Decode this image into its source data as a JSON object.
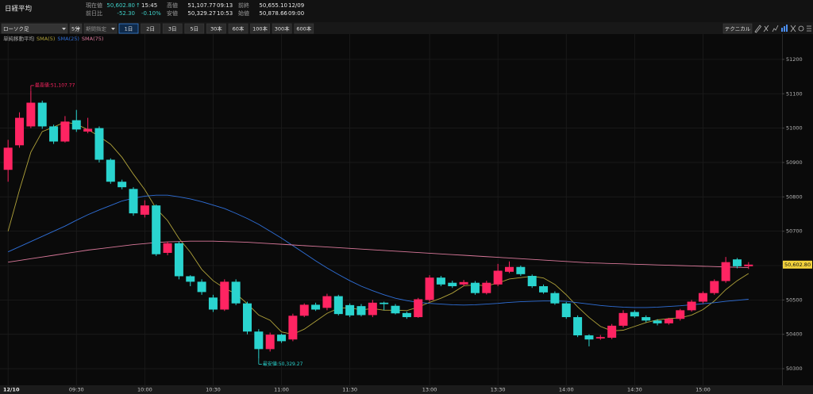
{
  "header": {
    "title": "日経平均",
    "quotes": [
      {
        "label": "現在値",
        "value": "50,602.80",
        "arrow": "↑",
        "note": "15:45"
      },
      {
        "label": "前日比",
        "value": "-52.30",
        "note": "-0.10%"
      },
      {
        "label": "高値",
        "value": "51,107.77",
        "note": "09:13"
      },
      {
        "label": "安値",
        "value": "50,329.27",
        "note": "10:53"
      },
      {
        "label": "前終",
        "value": "50,655.10",
        "note": "12/09"
      },
      {
        "label": "始値",
        "value": "50,878.66",
        "note": "09:00"
      }
    ]
  },
  "toolbar": {
    "dropdowns": [
      "ローソク足",
      "5分",
      "期間指定"
    ],
    "ranges": [
      "1日",
      "2日",
      "3日",
      "5日",
      "30本",
      "60本",
      "100本",
      "300本",
      "600本"
    ],
    "technical": "テクニカル"
  },
  "chart_data": {
    "type": "candlestick",
    "legend_title": "単純移動平均",
    "categories": [
      "12/10",
      null,
      null,
      null,
      null,
      null,
      "09:30",
      null,
      null,
      null,
      null,
      null,
      "10:00",
      null,
      null,
      null,
      null,
      null,
      "10:30",
      null,
      null,
      null,
      null,
      null,
      "11:00",
      null,
      null,
      null,
      null,
      null,
      "11:30",
      null,
      null,
      null,
      null,
      null,
      null,
      "13:00",
      null,
      null,
      null,
      null,
      null,
      "13:30",
      null,
      null,
      null,
      null,
      null,
      "14:00",
      null,
      null,
      null,
      null,
      null,
      "14:30",
      null,
      null,
      null,
      null,
      null,
      "15:00",
      null,
      null,
      null,
      null
    ],
    "open": [
      50878.66,
      50950,
      51005,
      51074,
      51005,
      50961,
      51023,
      50990,
      51000,
      50908,
      50844,
      50823,
      50748,
      50775,
      50637,
      50665,
      50569,
      50553,
      50507,
      50472,
      50553,
      50490,
      50408,
      50357,
      50399,
      50385,
      50454,
      50486,
      50477,
      50511,
      50485,
      50482,
      50456,
      50492,
      50483,
      50462,
      50450,
      50500,
      50565,
      50550,
      50545,
      50550,
      50520,
      50545,
      50582,
      50596,
      50570,
      50540,
      50520,
      50490,
      50450,
      50397,
      50388,
      50390,
      50425,
      50465,
      50450,
      50440,
      50432,
      50445,
      50470,
      50495,
      50520,
      50555,
      50618,
      50598
    ],
    "high": [
      50966,
      51046,
      51107.77,
      51080,
      51010,
      51035,
      51053,
      51030,
      51005,
      50912,
      50850,
      50828,
      50790,
      50778,
      50670,
      50670,
      50572,
      50560,
      50515,
      50560,
      50560,
      50495,
      50415,
      50405,
      50402,
      50460,
      50490,
      50492,
      50518,
      50515,
      50490,
      50488,
      50500,
      50495,
      50488,
      50466,
      50506,
      50572,
      50570,
      50556,
      50558,
      50555,
      50556,
      50605,
      50612,
      50600,
      50574,
      50545,
      50525,
      50494,
      50455,
      50400,
      50398,
      50430,
      50470,
      50470,
      50455,
      50444,
      50448,
      50474,
      50500,
      50525,
      50560,
      50625,
      50622,
      50610
    ],
    "low": [
      50844,
      50943,
      51000,
      50998,
      50954,
      50958,
      50989,
      50985,
      50900,
      50838,
      50822,
      50745,
      50740,
      50628,
      50630,
      50560,
      50540,
      50515,
      50465,
      50468,
      50485,
      50400,
      50329.27,
      50350,
      50375,
      50380,
      50450,
      50468,
      50470,
      50455,
      50450,
      50452,
      50450,
      50470,
      50458,
      50445,
      50448,
      50495,
      50540,
      50535,
      50540,
      50515,
      50516,
      50540,
      50578,
      50570,
      50535,
      50518,
      50486,
      50445,
      50392,
      50365,
      50384,
      50386,
      50420,
      50448,
      50435,
      50426,
      50428,
      50440,
      50466,
      50490,
      50515,
      50550,
      50592,
      50590
    ],
    "close": [
      50943,
      51030,
      51074,
      51005,
      50961,
      51019,
      50996,
      50998,
      50908,
      50844,
      50828,
      50752,
      50775,
      50633,
      50665,
      50569,
      50553,
      50523,
      50472,
      50553,
      50490,
      50408,
      50357,
      50399,
      50380,
      50454,
      50486,
      50472,
      50511,
      50459,
      50455,
      50456,
      50492,
      50488,
      50461,
      50450,
      50502,
      50565,
      50545,
      50540,
      50552,
      50520,
      50550,
      50585,
      50596,
      50575,
      50540,
      50522,
      50490,
      50450,
      50397,
      50385,
      50392,
      50425,
      50462,
      50452,
      50440,
      50432,
      50445,
      50470,
      50495,
      50520,
      50555,
      50610,
      50598,
      50602.8
    ],
    "up_color": "#ff2462",
    "down_color": "#2ad4cf",
    "series": [
      {
        "name": "SMA(5)",
        "color": "#b0a23a",
        "values": [
          50700,
          50820,
          50930,
          50990,
          51003,
          51018,
          51011,
          50996,
          50976,
          50953,
          50915,
          50866,
          50821,
          50766,
          50731,
          50679,
          50639,
          50589,
          50556,
          50534,
          50518,
          50489,
          50456,
          50441,
          50407,
          50400,
          50415,
          50438,
          50461,
          50476,
          50477,
          50471,
          50475,
          50470,
          50470,
          50469,
          50479,
          50493,
          50505,
          50520,
          50541,
          50544,
          50541,
          50549,
          50561,
          50565,
          50569,
          50564,
          50545,
          50515,
          50480,
          50449,
          50423,
          50410,
          50412,
          50423,
          50434,
          50442,
          50446,
          50448,
          50456,
          50472,
          50497,
          50530,
          50556,
          50577
        ]
      },
      {
        "name": "SMA(25)",
        "color": "#2f6fd8",
        "values": [
          50640,
          50655,
          50670,
          50685,
          50700,
          50715,
          50732,
          50748,
          50762,
          50775,
          50788,
          50796,
          50802,
          50805,
          50805,
          50800,
          50794,
          50786,
          50776,
          50766,
          50752,
          50737,
          50720,
          50700,
          50680,
          50658,
          50636,
          50614,
          50593,
          50574,
          50556,
          50540,
          50527,
          50515,
          50505,
          50498,
          50493,
          50490,
          50488,
          50486,
          50485,
          50486,
          50488,
          50490,
          50493,
          50495,
          50496,
          50497,
          50497,
          50496,
          50492,
          50488,
          50484,
          50481,
          50479,
          50478,
          50478,
          50479,
          50481,
          50483,
          50486,
          50489,
          50492,
          50496,
          50499,
          50502
        ]
      },
      {
        "name": "SMA(75)",
        "color": "#d9789a",
        "values": [
          50610,
          50615,
          50620,
          50625,
          50630,
          50635,
          50640,
          50645,
          50649,
          50653,
          50657,
          50661,
          50664,
          50667,
          50669,
          50670,
          50671,
          50671,
          50671,
          50670,
          50669,
          50668,
          50666,
          50664,
          50662,
          50660,
          50658,
          50656,
          50654,
          50652,
          50650,
          50648,
          50646,
          50644,
          50642,
          50640,
          50638,
          50636,
          50634,
          50632,
          50630,
          50628,
          50626,
          50624,
          50622,
          50620,
          50618,
          50616,
          50614,
          50612,
          50610,
          50608,
          50607,
          50606,
          50605,
          50604,
          50603,
          50602,
          50601,
          50600,
          50599,
          50598,
          50597,
          50596,
          50595,
          50594
        ]
      }
    ],
    "annotations": [
      {
        "text": "最高値:51,107.77",
        "value": 51107.77
      },
      {
        "text": "最安値:50,329.27",
        "value": 50329.27
      }
    ],
    "price_tag": {
      "value": 50602.8,
      "label": "50,602.80"
    },
    "ylim": [
      50254,
      51269
    ],
    "yticks": [
      50300,
      50400,
      50500,
      50600,
      50700,
      50800,
      50900,
      51000,
      51100,
      51200
    ],
    "grid": true
  }
}
